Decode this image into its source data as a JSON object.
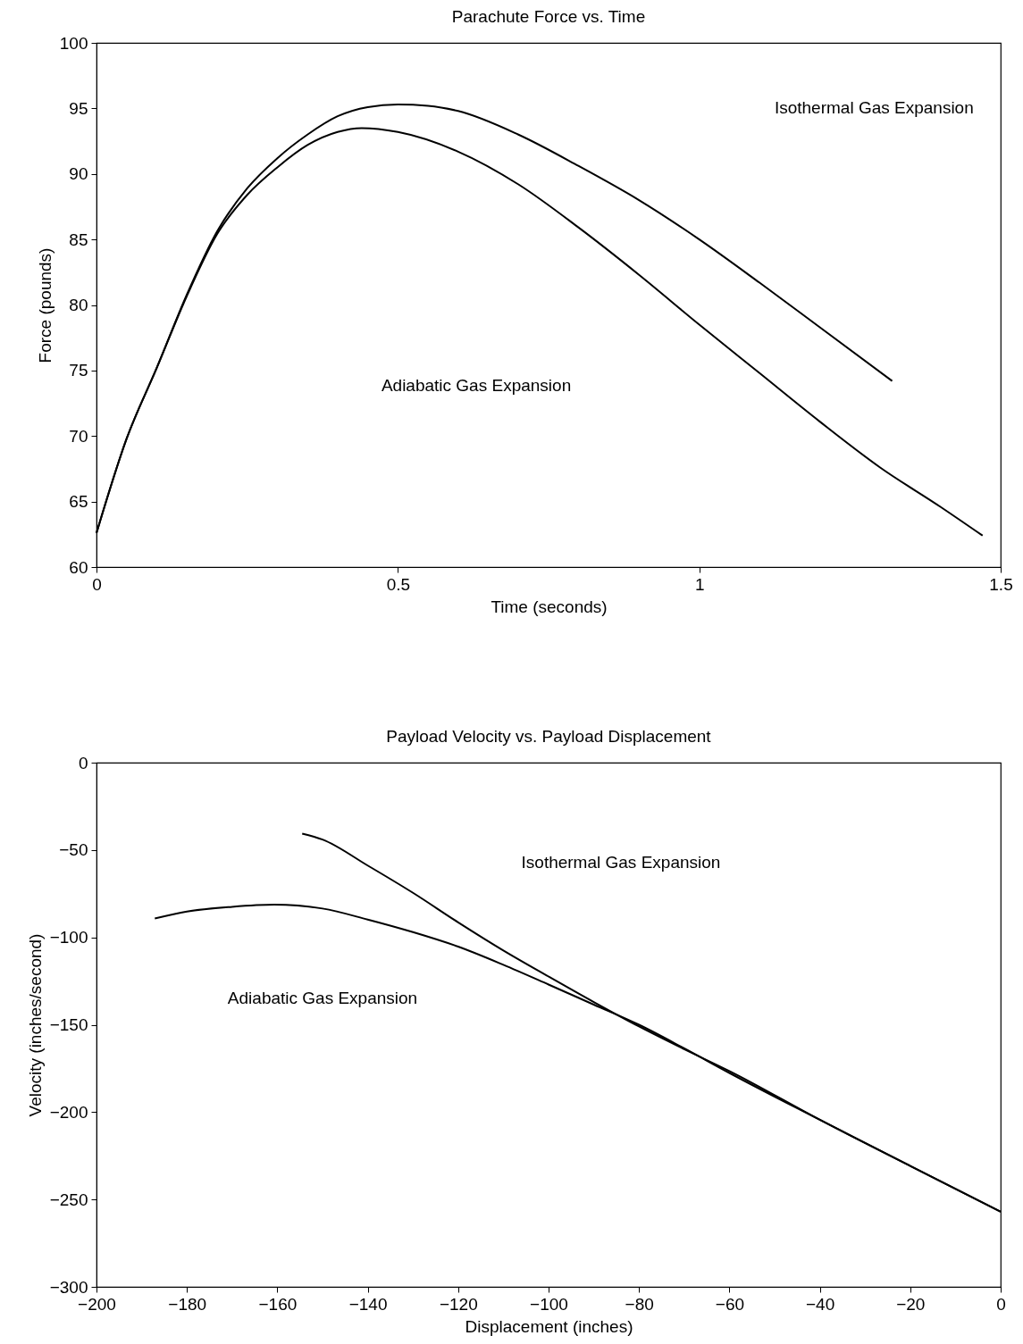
{
  "chart_data": [
    {
      "type": "line",
      "title": "Parachute Force vs. Time",
      "xlabel": "Time (seconds)",
      "ylabel": "Force (pounds)",
      "xlim": [
        0,
        1.5
      ],
      "xticks": [
        0,
        0.5,
        1,
        1.5
      ],
      "ylim": [
        60,
        100
      ],
      "yticks": [
        60,
        65,
        70,
        75,
        80,
        85,
        90,
        95,
        100
      ],
      "grid": false,
      "series": [
        {
          "color": "#000000",
          "x": [
            0,
            0.05,
            0.1,
            0.15,
            0.2,
            0.25,
            0.3,
            0.35,
            0.4,
            0.45,
            0.5,
            0.55,
            0.6,
            0.7,
            0.8,
            0.9,
            1.0,
            1.1,
            1.2,
            1.32
          ],
          "values": [
            62.6,
            69.8,
            75.2,
            80.8,
            85.6,
            88.9,
            91.2,
            93.0,
            94.4,
            95.1,
            95.3,
            95.2,
            94.8,
            93.0,
            90.6,
            88.0,
            85.0,
            81.7,
            78.3,
            74.2
          ]
        },
        {
          "color": "#000000",
          "x": [
            0,
            0.05,
            0.1,
            0.15,
            0.2,
            0.25,
            0.3,
            0.35,
            0.4,
            0.44,
            0.5,
            0.6,
            0.7,
            0.8,
            0.9,
            1.0,
            1.1,
            1.2,
            1.3,
            1.4,
            1.47
          ],
          "values": [
            62.6,
            69.8,
            75.2,
            80.7,
            85.4,
            88.4,
            90.5,
            92.2,
            93.2,
            93.5,
            93.2,
            91.7,
            89.2,
            85.9,
            82.3,
            78.5,
            74.8,
            71.1,
            67.6,
            64.6,
            62.4
          ]
        }
      ],
      "annotations": [
        "Isothermal Gas Expansion",
        "Adiabatic Gas Expansion"
      ]
    },
    {
      "type": "line",
      "title": "Payload Velocity vs. Payload Displacement",
      "xlabel": "Displacement (inches)",
      "ylabel": "Velocity (inches/second)",
      "xlim": [
        -200,
        0
      ],
      "xticks": [
        -200,
        -180,
        -160,
        -140,
        -120,
        -100,
        -80,
        -60,
        -40,
        -20,
        0
      ],
      "ylim": [
        -300,
        0
      ],
      "yticks": [
        -300,
        -250,
        -200,
        -150,
        -100,
        -50,
        0
      ],
      "grid": false,
      "series": [
        {
          "color": "#000000",
          "x": [
            -154.5,
            -150,
            -140,
            -130,
            -120,
            -110,
            -100,
            -90,
            -80,
            -70,
            -60,
            -40,
            -20,
            0
          ],
          "values": [
            -40.6,
            -44,
            -58.9,
            -74.5,
            -91.4,
            -107.5,
            -122.4,
            -137,
            -151,
            -164,
            -176.5,
            -204.4,
            -230.8,
            -257
          ]
        },
        {
          "color": "#000000",
          "x": [
            -187.1,
            -180,
            -170,
            -160.7,
            -150,
            -140,
            -130,
            -120,
            -110,
            -100,
            -90,
            -80,
            -70,
            -60,
            -40,
            -20,
            0
          ],
          "values": [
            -89.2,
            -85.2,
            -82.5,
            -81.3,
            -83.5,
            -89.8,
            -97,
            -105.3,
            -115.7,
            -127,
            -138.5,
            -150,
            -163.5,
            -177.6,
            -204.4,
            -230.8,
            -257
          ]
        }
      ],
      "annotations": [
        "Isothermal Gas Expansion",
        "Adiabatic Gas Expansion"
      ]
    }
  ]
}
